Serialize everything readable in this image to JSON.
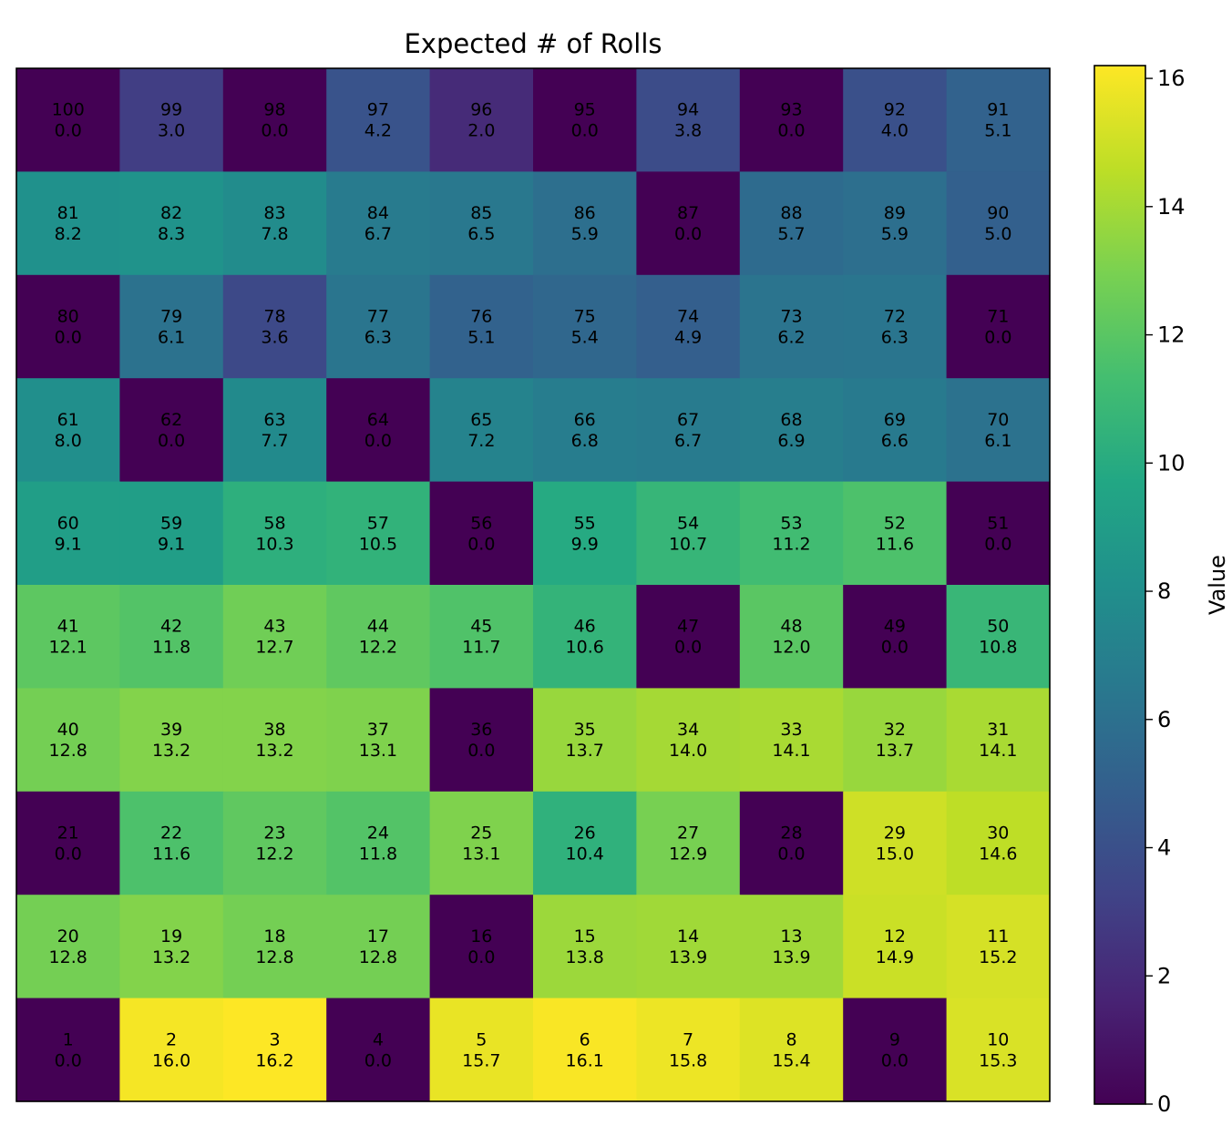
{
  "chart_data": {
    "type": "heatmap",
    "title": "Expected # of Rolls",
    "colorbar_label": "Value",
    "colormap": "viridis",
    "vmin": 0,
    "vmax": 16.2,
    "colorbar_ticks": [
      "0",
      "2",
      "4",
      "6",
      "8",
      "10",
      "12",
      "14",
      "16"
    ],
    "grid": false,
    "rows": [
      {
        "squares": [
          "100",
          "99",
          "98",
          "97",
          "96",
          "95",
          "94",
          "93",
          "92",
          "91"
        ],
        "values": [
          0.0,
          3.0,
          0.0,
          4.2,
          2.0,
          0.0,
          3.8,
          0.0,
          4.0,
          5.1
        ]
      },
      {
        "squares": [
          "81",
          "82",
          "83",
          "84",
          "85",
          "86",
          "87",
          "88",
          "89",
          "90"
        ],
        "values": [
          8.2,
          8.3,
          7.8,
          6.7,
          6.5,
          5.9,
          0.0,
          5.7,
          5.9,
          5.0
        ]
      },
      {
        "squares": [
          "80",
          "79",
          "78",
          "77",
          "76",
          "75",
          "74",
          "73",
          "72",
          "71"
        ],
        "values": [
          0.0,
          6.1,
          3.6,
          6.3,
          5.1,
          5.4,
          4.9,
          6.2,
          6.3,
          0.0
        ]
      },
      {
        "squares": [
          "61",
          "62",
          "63",
          "64",
          "65",
          "66",
          "67",
          "68",
          "69",
          "70"
        ],
        "values": [
          8.0,
          0.0,
          7.7,
          0.0,
          7.2,
          6.8,
          6.7,
          6.9,
          6.6,
          6.1
        ]
      },
      {
        "squares": [
          "60",
          "59",
          "58",
          "57",
          "56",
          "55",
          "54",
          "53",
          "52",
          "51"
        ],
        "values": [
          9.1,
          9.1,
          10.3,
          10.5,
          0.0,
          9.9,
          10.7,
          11.2,
          11.6,
          0.0
        ]
      },
      {
        "squares": [
          "41",
          "42",
          "43",
          "44",
          "45",
          "46",
          "47",
          "48",
          "49",
          "50"
        ],
        "values": [
          12.1,
          11.8,
          12.7,
          12.2,
          11.7,
          10.6,
          0.0,
          12.0,
          0.0,
          10.8
        ]
      },
      {
        "squares": [
          "40",
          "39",
          "38",
          "37",
          "36",
          "35",
          "34",
          "33",
          "32",
          "31"
        ],
        "values": [
          12.8,
          13.2,
          13.2,
          13.1,
          0.0,
          13.7,
          14.0,
          14.1,
          13.7,
          14.1
        ]
      },
      {
        "squares": [
          "21",
          "22",
          "23",
          "24",
          "25",
          "26",
          "27",
          "28",
          "29",
          "30"
        ],
        "values": [
          0.0,
          11.6,
          12.2,
          11.8,
          13.1,
          10.4,
          12.9,
          0.0,
          15.0,
          14.6
        ]
      },
      {
        "squares": [
          "20",
          "19",
          "18",
          "17",
          "16",
          "15",
          "14",
          "13",
          "12",
          "11"
        ],
        "values": [
          12.8,
          13.2,
          12.8,
          12.8,
          0.0,
          13.8,
          13.9,
          13.9,
          14.9,
          15.2
        ]
      },
      {
        "squares": [
          "1",
          "2",
          "3",
          "4",
          "5",
          "6",
          "7",
          "8",
          "9",
          "10"
        ],
        "values": [
          0.0,
          16.0,
          16.2,
          0.0,
          15.7,
          16.1,
          15.8,
          15.4,
          0.0,
          15.3
        ]
      }
    ]
  }
}
